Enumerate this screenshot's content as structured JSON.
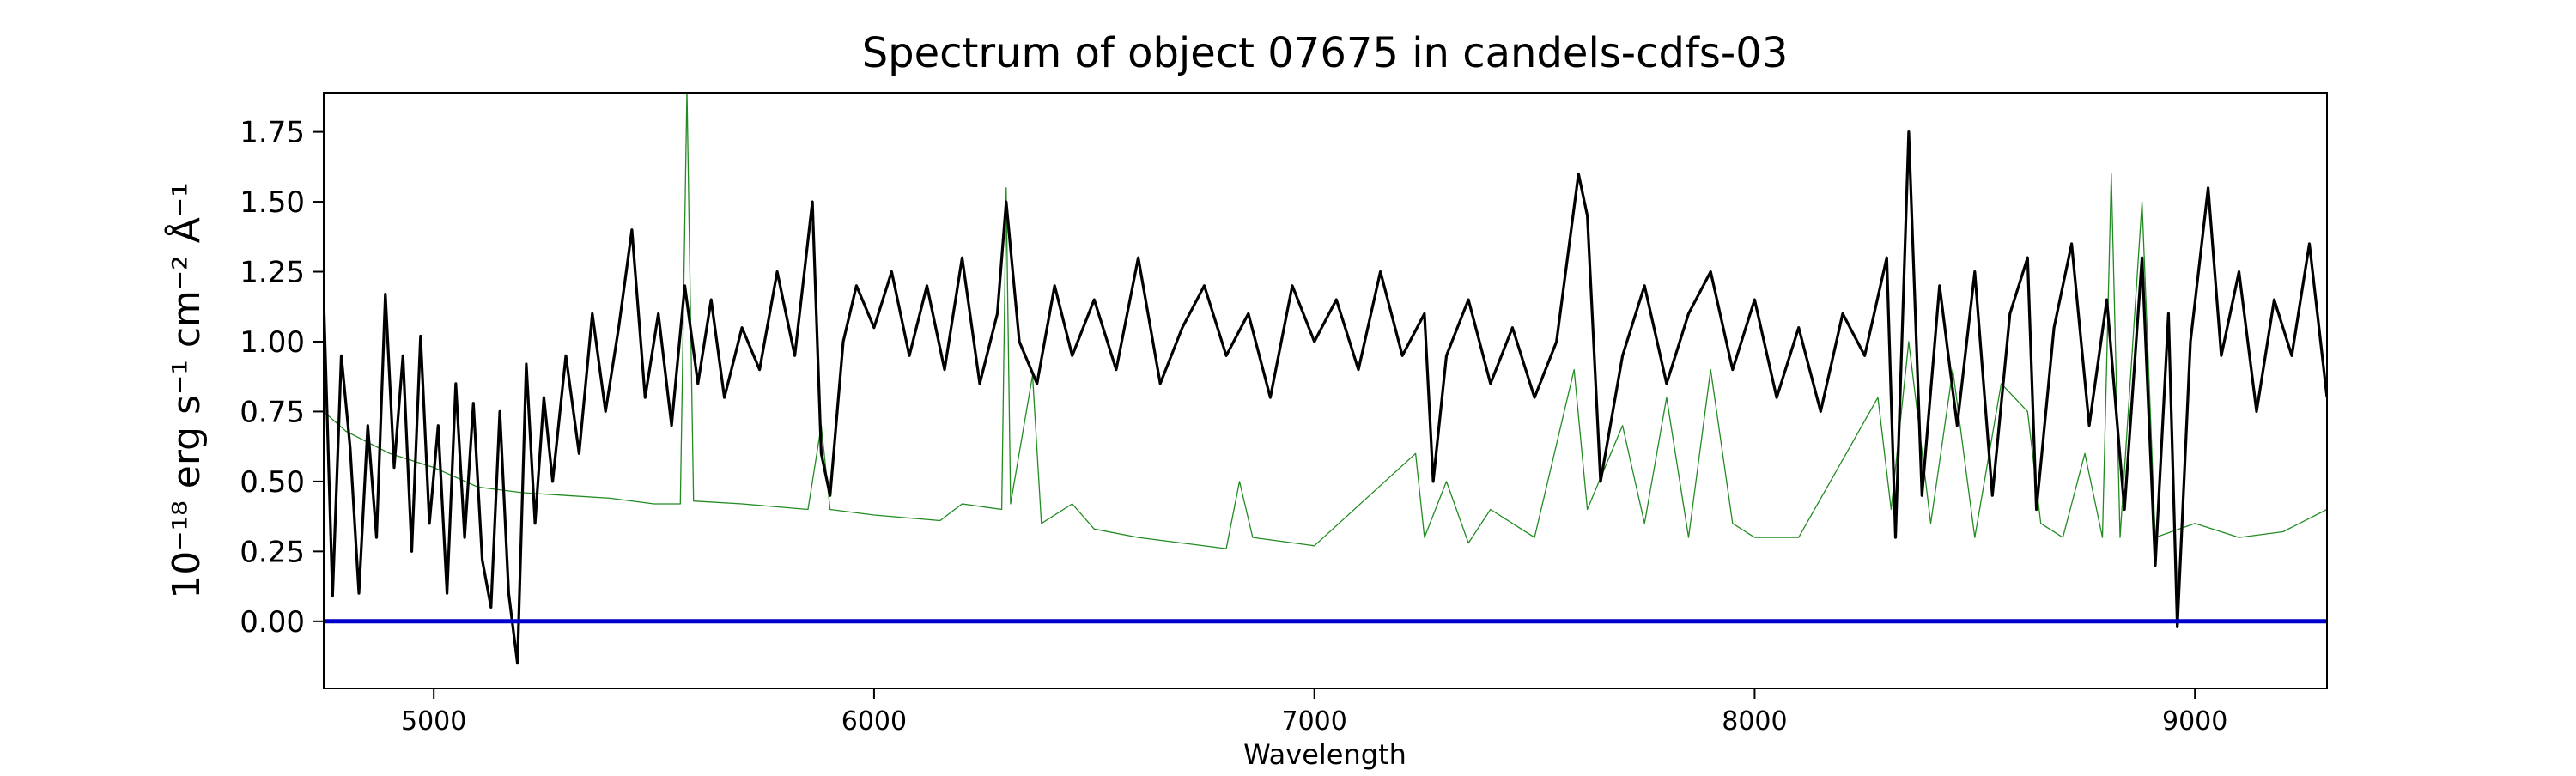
{
  "chart_data": {
    "type": "line",
    "title": "Spectrum of object 07675 in candels-cdfs-03",
    "xlabel": "Wavelength",
    "ylabel": "10⁻¹⁸ erg s⁻¹ cm⁻² Å⁻¹",
    "xlim": [
      4750,
      9300
    ],
    "ylim": [
      -0.24,
      1.89
    ],
    "x_ticks": [
      5000,
      6000,
      7000,
      8000,
      9000
    ],
    "x_tick_labels": [
      "5000",
      "6000",
      "7000",
      "8000",
      "9000"
    ],
    "y_ticks": [
      0.0,
      0.25,
      0.5,
      0.75,
      1.0,
      1.25,
      1.5,
      1.75
    ],
    "y_tick_labels": [
      "0.00",
      "0.25",
      "0.50",
      "0.75",
      "1.00",
      "1.25",
      "1.50",
      "1.75"
    ],
    "grid": false,
    "series": [
      {
        "role": "flux",
        "color": "#000000",
        "points": [
          [
            4750,
            1.15
          ],
          [
            4770,
            0.09
          ],
          [
            4790,
            0.95
          ],
          [
            4810,
            0.62
          ],
          [
            4830,
            0.1
          ],
          [
            4850,
            0.7
          ],
          [
            4870,
            0.3
          ],
          [
            4890,
            1.17
          ],
          [
            4910,
            0.55
          ],
          [
            4930,
            0.95
          ],
          [
            4950,
            0.25
          ],
          [
            4970,
            1.02
          ],
          [
            4990,
            0.35
          ],
          [
            5010,
            0.7
          ],
          [
            5030,
            0.1
          ],
          [
            5050,
            0.85
          ],
          [
            5070,
            0.3
          ],
          [
            5090,
            0.78
          ],
          [
            5110,
            0.22
          ],
          [
            5130,
            0.05
          ],
          [
            5150,
            0.75
          ],
          [
            5170,
            0.1
          ],
          [
            5190,
            -0.15
          ],
          [
            5210,
            0.92
          ],
          [
            5230,
            0.35
          ],
          [
            5250,
            0.8
          ],
          [
            5270,
            0.5
          ],
          [
            5300,
            0.95
          ],
          [
            5330,
            0.6
          ],
          [
            5360,
            1.1
          ],
          [
            5390,
            0.75
          ],
          [
            5420,
            1.05
          ],
          [
            5450,
            1.4
          ],
          [
            5480,
            0.8
          ],
          [
            5510,
            1.1
          ],
          [
            5540,
            0.7
          ],
          [
            5570,
            1.2
          ],
          [
            5600,
            0.85
          ],
          [
            5630,
            1.15
          ],
          [
            5660,
            0.8
          ],
          [
            5700,
            1.05
          ],
          [
            5740,
            0.9
          ],
          [
            5780,
            1.25
          ],
          [
            5820,
            0.95
          ],
          [
            5860,
            1.5
          ],
          [
            5880,
            0.6
          ],
          [
            5900,
            0.45
          ],
          [
            5930,
            1.0
          ],
          [
            5960,
            1.2
          ],
          [
            6000,
            1.05
          ],
          [
            6040,
            1.25
          ],
          [
            6080,
            0.95
          ],
          [
            6120,
            1.2
          ],
          [
            6160,
            0.9
          ],
          [
            6200,
            1.3
          ],
          [
            6240,
            0.85
          ],
          [
            6280,
            1.1
          ],
          [
            6300,
            1.5
          ],
          [
            6330,
            1.0
          ],
          [
            6370,
            0.85
          ],
          [
            6410,
            1.2
          ],
          [
            6450,
            0.95
          ],
          [
            6500,
            1.15
          ],
          [
            6550,
            0.9
          ],
          [
            6600,
            1.3
          ],
          [
            6650,
            0.85
          ],
          [
            6700,
            1.05
          ],
          [
            6750,
            1.2
          ],
          [
            6800,
            0.95
          ],
          [
            6850,
            1.1
          ],
          [
            6900,
            0.8
          ],
          [
            6950,
            1.2
          ],
          [
            7000,
            1.0
          ],
          [
            7050,
            1.15
          ],
          [
            7100,
            0.9
          ],
          [
            7150,
            1.25
          ],
          [
            7200,
            0.95
          ],
          [
            7250,
            1.1
          ],
          [
            7270,
            0.5
          ],
          [
            7300,
            0.95
          ],
          [
            7350,
            1.15
          ],
          [
            7400,
            0.85
          ],
          [
            7450,
            1.05
          ],
          [
            7500,
            0.8
          ],
          [
            7550,
            1.0
          ],
          [
            7600,
            1.6
          ],
          [
            7620,
            1.45
          ],
          [
            7650,
            0.5
          ],
          [
            7700,
            0.95
          ],
          [
            7750,
            1.2
          ],
          [
            7800,
            0.85
          ],
          [
            7850,
            1.1
          ],
          [
            7900,
            1.25
          ],
          [
            7950,
            0.9
          ],
          [
            8000,
            1.15
          ],
          [
            8050,
            0.8
          ],
          [
            8100,
            1.05
          ],
          [
            8150,
            0.75
          ],
          [
            8200,
            1.1
          ],
          [
            8250,
            0.95
          ],
          [
            8300,
            1.3
          ],
          [
            8320,
            0.3
          ],
          [
            8350,
            1.75
          ],
          [
            8380,
            0.45
          ],
          [
            8420,
            1.2
          ],
          [
            8460,
            0.7
          ],
          [
            8500,
            1.25
          ],
          [
            8540,
            0.45
          ],
          [
            8580,
            1.1
          ],
          [
            8620,
            1.3
          ],
          [
            8640,
            0.4
          ],
          [
            8680,
            1.05
          ],
          [
            8720,
            1.35
          ],
          [
            8760,
            0.7
          ],
          [
            8800,
            1.15
          ],
          [
            8840,
            0.4
          ],
          [
            8880,
            1.3
          ],
          [
            8910,
            0.2
          ],
          [
            8940,
            1.1
          ],
          [
            8960,
            -0.02
          ],
          [
            8990,
            1.0
          ],
          [
            9030,
            1.55
          ],
          [
            9060,
            0.95
          ],
          [
            9100,
            1.25
          ],
          [
            9140,
            0.75
          ],
          [
            9180,
            1.15
          ],
          [
            9220,
            0.95
          ],
          [
            9260,
            1.35
          ],
          [
            9300,
            0.8
          ]
        ]
      },
      {
        "role": "error",
        "color": "#228B22",
        "points": [
          [
            4750,
            0.75
          ],
          [
            4800,
            0.68
          ],
          [
            4900,
            0.6
          ],
          [
            5000,
            0.55
          ],
          [
            5100,
            0.48
          ],
          [
            5200,
            0.46
          ],
          [
            5300,
            0.45
          ],
          [
            5400,
            0.44
          ],
          [
            5500,
            0.42
          ],
          [
            5560,
            0.42
          ],
          [
            5575,
            1.9
          ],
          [
            5590,
            0.43
          ],
          [
            5700,
            0.42
          ],
          [
            5850,
            0.4
          ],
          [
            5880,
            0.7
          ],
          [
            5900,
            0.4
          ],
          [
            6000,
            0.38
          ],
          [
            6150,
            0.36
          ],
          [
            6200,
            0.42
          ],
          [
            6290,
            0.4
          ],
          [
            6300,
            1.55
          ],
          [
            6310,
            0.42
          ],
          [
            6360,
            0.88
          ],
          [
            6380,
            0.35
          ],
          [
            6450,
            0.42
          ],
          [
            6500,
            0.33
          ],
          [
            6600,
            0.3
          ],
          [
            6700,
            0.28
          ],
          [
            6800,
            0.26
          ],
          [
            6830,
            0.5
          ],
          [
            6860,
            0.3
          ],
          [
            7000,
            0.27
          ],
          [
            7230,
            0.6
          ],
          [
            7250,
            0.3
          ],
          [
            7300,
            0.5
          ],
          [
            7350,
            0.28
          ],
          [
            7400,
            0.4
          ],
          [
            7500,
            0.3
          ],
          [
            7590,
            0.9
          ],
          [
            7620,
            0.4
          ],
          [
            7700,
            0.7
          ],
          [
            7750,
            0.35
          ],
          [
            7800,
            0.8
          ],
          [
            7850,
            0.3
          ],
          [
            7900,
            0.9
          ],
          [
            7950,
            0.35
          ],
          [
            8000,
            0.3
          ],
          [
            8100,
            0.3
          ],
          [
            8280,
            0.8
          ],
          [
            8310,
            0.4
          ],
          [
            8350,
            1.0
          ],
          [
            8400,
            0.35
          ],
          [
            8450,
            0.9
          ],
          [
            8500,
            0.3
          ],
          [
            8560,
            0.85
          ],
          [
            8620,
            0.75
          ],
          [
            8650,
            0.35
          ],
          [
            8700,
            0.3
          ],
          [
            8750,
            0.6
          ],
          [
            8790,
            0.3
          ],
          [
            8810,
            1.6
          ],
          [
            8830,
            0.3
          ],
          [
            8880,
            1.5
          ],
          [
            8910,
            0.3
          ],
          [
            9000,
            0.35
          ],
          [
            9100,
            0.3
          ],
          [
            9200,
            0.32
          ],
          [
            9300,
            0.4
          ]
        ]
      },
      {
        "role": "zero-line",
        "color": "#0000CC",
        "points": [
          [
            4750,
            0.0
          ],
          [
            9300,
            0.0
          ]
        ]
      }
    ]
  }
}
